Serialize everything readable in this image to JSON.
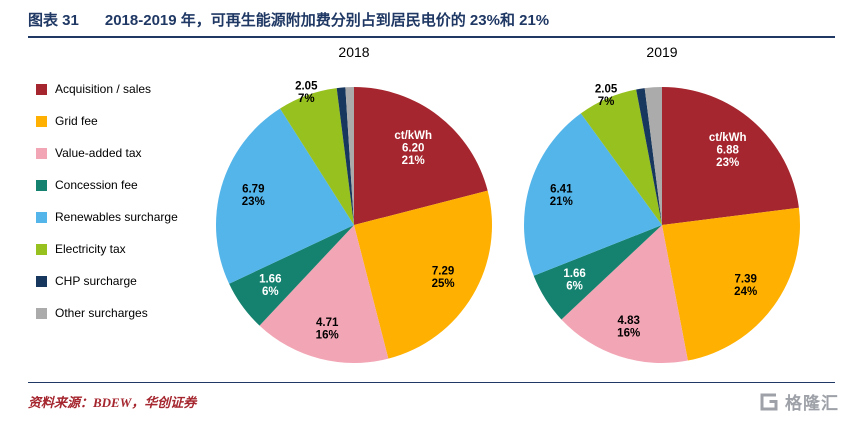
{
  "header": {
    "figure_label": "图表 31",
    "title": "2018-2019 年，可再生能源附加费分别占到居民电价的 23%和 21%",
    "accent_color": "#1F3864"
  },
  "legend": {
    "position": "left",
    "items": [
      {
        "label": "Acquisition / sales",
        "color": "#A5262E"
      },
      {
        "label": "Grid fee",
        "color": "#FFB000"
      },
      {
        "label": "Value-added tax",
        "color": "#F2A5B4"
      },
      {
        "label": "Concession fee",
        "color": "#158270"
      },
      {
        "label": "Renewables surcharge",
        "color": "#54B5EA"
      },
      {
        "label": "Electricity tax",
        "color": "#97C11E"
      },
      {
        "label": "CHP surcharge",
        "color": "#17375E"
      },
      {
        "label": "Other surcharges",
        "color": "#ABABAB"
      }
    ]
  },
  "chart_data": [
    {
      "type": "pie",
      "title": "2018",
      "unit": "ct/kWh",
      "start_angle_deg": 0,
      "clockwise": true,
      "slices": [
        {
          "label": "Acquisition / sales",
          "value": 6.2,
          "pct": 21,
          "color": "#A5262E",
          "text_lines": [
            "ct/kWh",
            "6.20",
            "21%"
          ],
          "text_color": "#FFFFFF",
          "label_r": 0.7
        },
        {
          "label": "Grid fee",
          "value": 7.29,
          "pct": 25,
          "color": "#FFB000",
          "text_lines": [
            "7.29",
            "25%"
          ],
          "text_color": "#000000",
          "label_r": 0.75
        },
        {
          "label": "Value-added tax",
          "value": 4.71,
          "pct": 16,
          "color": "#F2A5B4",
          "text_lines": [
            "4.71",
            "16%"
          ],
          "text_color": "#000000",
          "label_r": 0.78
        },
        {
          "label": "Concession fee",
          "value": 1.66,
          "pct": 6,
          "color": "#158270",
          "text_lines": [
            "1.66",
            "6%"
          ],
          "text_color": "#FFFFFF",
          "label_r": 0.75
        },
        {
          "label": "Renewables surcharge",
          "value": 6.79,
          "pct": 23,
          "color": "#54B5EA",
          "text_lines": [
            "6.79",
            "23%"
          ],
          "text_color": "#000000",
          "label_r": 0.76
        },
        {
          "label": "Electricity tax",
          "value": 2.05,
          "pct": 7,
          "color": "#97C11E",
          "text_lines": [
            "2.05",
            "7%"
          ],
          "text_color": "#000000",
          "label_r": 1.02
        },
        {
          "label": "CHP surcharge",
          "pct": 1,
          "color": "#17375E",
          "text_lines": [],
          "text_color": "#FFFFFF",
          "label_r": 0
        },
        {
          "label": "Other surcharges",
          "pct": 1,
          "color": "#ABABAB",
          "text_lines": [],
          "text_color": "#000000",
          "label_r": 0
        }
      ]
    },
    {
      "type": "pie",
      "title": "2019",
      "unit": "ct/kWh",
      "start_angle_deg": 0,
      "clockwise": true,
      "slices": [
        {
          "label": "Acquisition / sales",
          "value": 6.88,
          "pct": 23,
          "color": "#A5262E",
          "text_lines": [
            "ct/kWh",
            "6.88",
            "23%"
          ],
          "text_color": "#FFFFFF",
          "label_r": 0.72
        },
        {
          "label": "Grid fee",
          "value": 7.39,
          "pct": 24,
          "color": "#FFB000",
          "text_lines": [
            "7.39",
            "24%"
          ],
          "text_color": "#000000",
          "label_r": 0.75
        },
        {
          "label": "Value-added tax",
          "value": 4.83,
          "pct": 16,
          "color": "#F2A5B4",
          "text_lines": [
            "4.83",
            "16%"
          ],
          "text_color": "#000000",
          "label_r": 0.78
        },
        {
          "label": "Concession fee",
          "value": 1.66,
          "pct": 6,
          "color": "#158270",
          "text_lines": [
            "1.66",
            "6%"
          ],
          "text_color": "#FFFFFF",
          "label_r": 0.75
        },
        {
          "label": "Renewables surcharge",
          "value": 6.41,
          "pct": 21,
          "color": "#54B5EA",
          "text_lines": [
            "6.41",
            "21%"
          ],
          "text_color": "#000000",
          "label_r": 0.76
        },
        {
          "label": "Electricity tax",
          "value": 2.05,
          "pct": 7,
          "color": "#97C11E",
          "text_lines": [
            "2.05",
            "7%"
          ],
          "text_color": "#000000",
          "label_r": 1.02
        },
        {
          "label": "CHP surcharge",
          "pct": 1,
          "color": "#17375E",
          "text_lines": [],
          "text_color": "#FFFFFF",
          "label_r": 0
        },
        {
          "label": "Other surcharges",
          "pct": 2,
          "color": "#ABABAB",
          "text_lines": [],
          "text_color": "#000000",
          "label_r": 0
        }
      ]
    }
  ],
  "footer": {
    "source": "资料来源：BDEW，华创证券",
    "source_color": "#A5262E"
  },
  "logo": {
    "text": "格隆汇",
    "color": "#9EA2A8"
  }
}
